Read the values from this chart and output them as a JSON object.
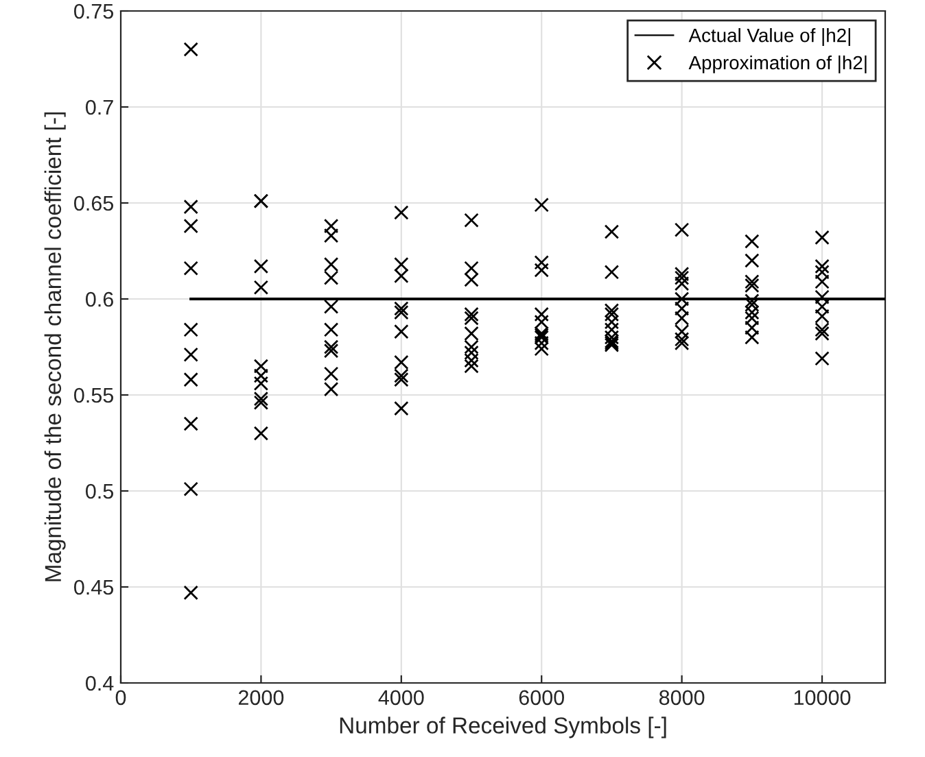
{
  "chart_data": {
    "type": "scatter",
    "xlabel": "Number of Received Symbols [-]",
    "ylabel": "Magnitude of the second channel coefficient [-]",
    "xlim": [
      0,
      10900
    ],
    "ylim": [
      0.4,
      0.75
    ],
    "xticks": [
      0,
      2000,
      4000,
      6000,
      8000,
      10000
    ],
    "yticks": [
      0.4,
      0.45,
      0.5,
      0.55,
      0.6,
      0.65,
      0.7,
      0.75
    ],
    "grid": true,
    "legend": "top right",
    "series": [
      {
        "name": "Actual Value of |h2|",
        "type": "line",
        "color": "#000000",
        "line_style": "solid",
        "marker": "none",
        "x": [
          1000,
          10900
        ],
        "values": [
          0.6,
          0.6
        ]
      },
      {
        "name": "Approximation of |h2|",
        "color": "#000000",
        "marker": "cross",
        "x": [
          1000,
          1000,
          1000,
          1000,
          1000,
          1000,
          1000,
          1000,
          1000,
          1000,
          2000,
          2000,
          2000,
          2000,
          2000,
          2000,
          2000,
          2000,
          2000,
          2000,
          3000,
          3000,
          3000,
          3000,
          3000,
          3000,
          3000,
          3000,
          3000,
          3000,
          4000,
          4000,
          4000,
          4000,
          4000,
          4000,
          4000,
          4000,
          4000,
          4000,
          5000,
          5000,
          5000,
          5000,
          5000,
          5000,
          5000,
          5000,
          5000,
          5000,
          6000,
          6000,
          6000,
          6000,
          6000,
          6000,
          6000,
          6000,
          6000,
          6000,
          7000,
          7000,
          7000,
          7000,
          7000,
          7000,
          7000,
          7000,
          7000,
          7000,
          8000,
          8000,
          8000,
          8000,
          8000,
          8000,
          8000,
          8000,
          8000,
          8000,
          9000,
          9000,
          9000,
          9000,
          9000,
          9000,
          9000,
          9000,
          9000,
          9000,
          10000,
          10000,
          10000,
          10000,
          10000,
          10000,
          10000,
          10000,
          10000,
          10000
        ],
        "values": [
          0.73,
          0.648,
          0.638,
          0.616,
          0.584,
          0.571,
          0.558,
          0.535,
          0.501,
          0.447,
          0.651,
          0.651,
          0.617,
          0.606,
          0.565,
          0.56,
          0.556,
          0.548,
          0.546,
          0.53,
          0.638,
          0.633,
          0.618,
          0.611,
          0.596,
          0.584,
          0.575,
          0.573,
          0.561,
          0.553,
          0.645,
          0.618,
          0.612,
          0.595,
          0.593,
          0.583,
          0.567,
          0.56,
          0.558,
          0.543,
          0.641,
          0.616,
          0.61,
          0.592,
          0.59,
          0.582,
          0.575,
          0.572,
          0.568,
          0.565,
          0.649,
          0.619,
          0.615,
          0.592,
          0.588,
          0.582,
          0.581,
          0.58,
          0.577,
          0.574,
          0.635,
          0.614,
          0.594,
          0.592,
          0.588,
          0.584,
          0.58,
          0.578,
          0.577,
          0.576,
          0.636,
          0.613,
          0.611,
          0.608,
          0.6,
          0.595,
          0.59,
          0.583,
          0.579,
          0.577,
          0.63,
          0.62,
          0.609,
          0.607,
          0.599,
          0.597,
          0.593,
          0.59,
          0.585,
          0.58,
          0.632,
          0.617,
          0.614,
          0.609,
          0.601,
          0.596,
          0.591,
          0.584,
          0.582,
          0.569
        ]
      }
    ]
  }
}
